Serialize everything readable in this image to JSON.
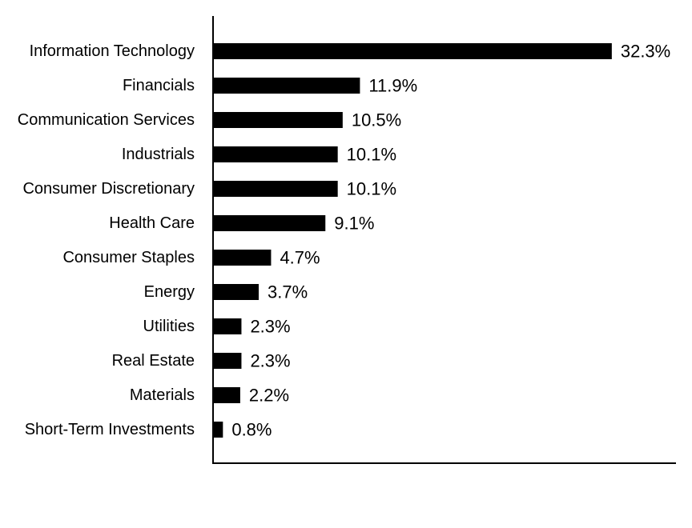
{
  "chart_data": {
    "type": "bar",
    "orientation": "horizontal",
    "categories": [
      "Information Technology",
      "Financials",
      "Communication Services",
      "Industrials",
      "Consumer Discretionary",
      "Health Care",
      "Consumer Staples",
      "Energy",
      "Utilities",
      "Real Estate",
      "Materials",
      "Short-Term Investments"
    ],
    "values": [
      32.3,
      11.9,
      10.5,
      10.1,
      10.1,
      9.1,
      4.7,
      3.7,
      2.3,
      2.3,
      2.2,
      0.8
    ],
    "value_labels": [
      "32.3%",
      "11.9%",
      "10.5%",
      "10.1%",
      "10.1%",
      "9.1%",
      "4.7%",
      "3.7%",
      "2.3%",
      "2.3%",
      "2.2%",
      "0.8%"
    ],
    "title": "",
    "xlabel": "",
    "ylabel": "",
    "xlim": [
      0,
      37.5
    ],
    "grid": false,
    "legend": "none",
    "bar_color": "#000000"
  }
}
